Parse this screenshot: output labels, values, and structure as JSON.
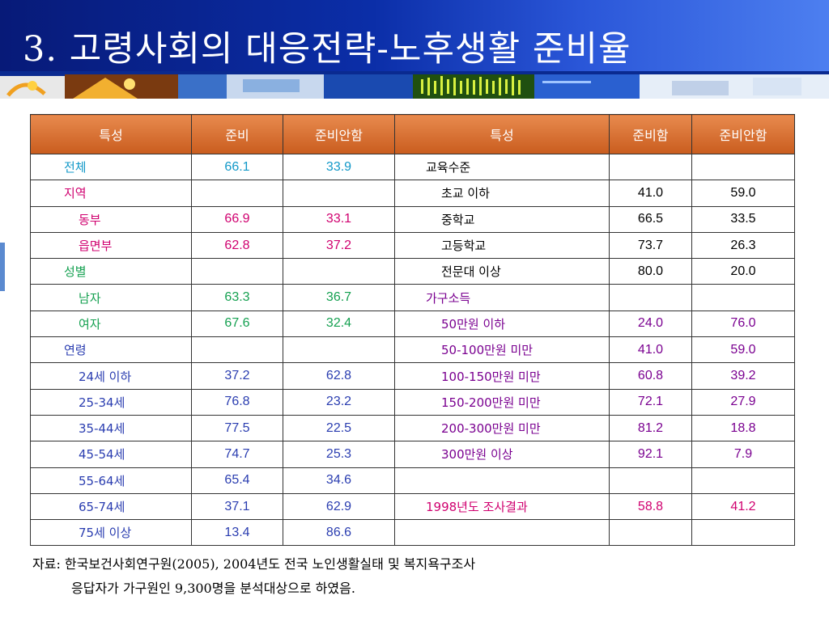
{
  "slide": {
    "title": "3. 고령사회의 대응전략-노후생활 준비율"
  },
  "table": {
    "headers": [
      "특성",
      "준비",
      "준비안함",
      "특성",
      "준비함",
      "준비안함"
    ],
    "rows": [
      {
        "l_label": "전체",
        "l_indent": false,
        "l_color": "teal",
        "l_a": "66.1",
        "l_b": "33.9",
        "r_label": "교육수준",
        "r_indent": false,
        "r_color": "black",
        "r_a": "",
        "r_b": ""
      },
      {
        "l_label": "지역",
        "l_indent": false,
        "l_color": "red",
        "l_a": "",
        "l_b": "",
        "r_label": "초교 이하",
        "r_indent": true,
        "r_color": "black",
        "r_a": "41.0",
        "r_b": "59.0"
      },
      {
        "l_label": "동부",
        "l_indent": true,
        "l_color": "red",
        "l_a": "66.9",
        "l_b": "33.1",
        "r_label": "중학교",
        "r_indent": true,
        "r_color": "black",
        "r_a": "66.5",
        "r_b": "33.5"
      },
      {
        "l_label": "읍면부",
        "l_indent": true,
        "l_color": "red",
        "l_a": "62.8",
        "l_b": "37.2",
        "r_label": "고등학교",
        "r_indent": true,
        "r_color": "black",
        "r_a": "73.7",
        "r_b": "26.3"
      },
      {
        "l_label": "성별",
        "l_indent": false,
        "l_color": "green",
        "l_a": "",
        "l_b": "",
        "r_label": "전문대 이상",
        "r_indent": true,
        "r_color": "black",
        "r_a": "80.0",
        "r_b": "20.0"
      },
      {
        "l_label": "남자",
        "l_indent": true,
        "l_color": "green",
        "l_a": "63.3",
        "l_b": "36.7",
        "r_label": "가구소득",
        "r_indent": false,
        "r_color": "purple",
        "r_a": "",
        "r_b": ""
      },
      {
        "l_label": "여자",
        "l_indent": true,
        "l_color": "green",
        "l_a": "67.6",
        "l_b": "32.4",
        "r_label": "50만원 이하",
        "r_indent": true,
        "r_color": "purple",
        "r_a": "24.0",
        "r_b": "76.0"
      },
      {
        "l_label": "연령",
        "l_indent": false,
        "l_color": "blue",
        "l_a": "",
        "l_b": "",
        "r_label": "50-100만원 미만",
        "r_indent": true,
        "r_color": "purple",
        "r_a": "41.0",
        "r_b": "59.0"
      },
      {
        "l_label": "24세 이하",
        "l_indent": true,
        "l_color": "blue",
        "l_a": "37.2",
        "l_b": "62.8",
        "r_label": "100-150만원 미만",
        "r_indent": true,
        "r_color": "purple",
        "r_a": "60.8",
        "r_b": "39.2"
      },
      {
        "l_label": "25-34세",
        "l_indent": true,
        "l_color": "blue",
        "l_a": "76.8",
        "l_b": "23.2",
        "r_label": "150-200만원 미만",
        "r_indent": true,
        "r_color": "purple",
        "r_a": "72.1",
        "r_b": "27.9"
      },
      {
        "l_label": "35-44세",
        "l_indent": true,
        "l_color": "blue",
        "l_a": "77.5",
        "l_b": "22.5",
        "r_label": "200-300만원 미만",
        "r_indent": true,
        "r_color": "purple",
        "r_a": "81.2",
        "r_b": "18.8"
      },
      {
        "l_label": "45-54세",
        "l_indent": true,
        "l_color": "blue",
        "l_a": "74.7",
        "l_b": "25.3",
        "r_label": "300만원 이상",
        "r_indent": true,
        "r_color": "purple",
        "r_a": "92.1",
        "r_b": "7.9"
      },
      {
        "l_label": "55-64세",
        "l_indent": true,
        "l_color": "blue",
        "l_a": "65.4",
        "l_b": "34.6",
        "r_label": "",
        "r_indent": false,
        "r_color": "black",
        "r_a": "",
        "r_b": ""
      },
      {
        "l_label": "65-74세",
        "l_indent": true,
        "l_color": "blue",
        "l_a": "37.1",
        "l_b": "62.9",
        "r_label": "1998년도 조사결과",
        "r_indent": false,
        "r_color": "red",
        "r_a": "58.8",
        "r_b": "41.2"
      },
      {
        "l_label": "75세 이상",
        "l_indent": true,
        "l_color": "blue",
        "l_a": "13.4",
        "l_b": "86.6",
        "r_label": "",
        "r_indent": false,
        "r_color": "black",
        "r_a": "",
        "r_b": ""
      }
    ]
  },
  "footnote": {
    "line1": "자료: 한국보건사회연구원(2005), 2004년도 전국 노인생활실태 및 복지욕구조사",
    "line2": "응답자가 가구원인 9,300명을 분석대상으로 하였음."
  },
  "colors": {
    "teal": "#1198c8",
    "red": "#d0006f",
    "green": "#14a050",
    "blue": "#2a3db0",
    "black": "#000000",
    "purple": "#7a0090",
    "header_bg": "#0b2ea8",
    "table_header": "#d96a2a"
  }
}
